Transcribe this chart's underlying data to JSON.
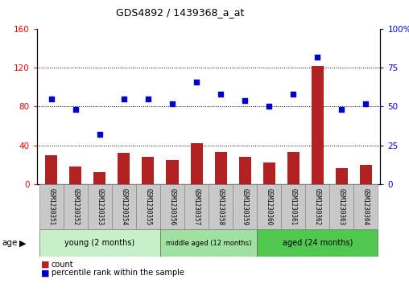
{
  "title": "GDS4892 / 1439368_a_at",
  "samples": [
    "GSM1230351",
    "GSM1230352",
    "GSM1230353",
    "GSM1230354",
    "GSM1230355",
    "GSM1230356",
    "GSM1230357",
    "GSM1230358",
    "GSM1230359",
    "GSM1230360",
    "GSM1230361",
    "GSM1230362",
    "GSM1230363",
    "GSM1230364"
  ],
  "counts": [
    30,
    18,
    12,
    32,
    28,
    25,
    42,
    33,
    28,
    22,
    33,
    122,
    16,
    20
  ],
  "percentiles": [
    55,
    48,
    32,
    55,
    55,
    52,
    66,
    58,
    54,
    50,
    58,
    82,
    48,
    52
  ],
  "groups": [
    {
      "label": "young (2 months)",
      "start": 0,
      "end": 5,
      "color": "#c8f0c8"
    },
    {
      "label": "middle aged (12 months)",
      "start": 5,
      "end": 9,
      "color": "#a0e0a0"
    },
    {
      "label": "aged (24 months)",
      "start": 9,
      "end": 14,
      "color": "#50c850"
    }
  ],
  "bar_color": "#B22222",
  "dot_color": "#0000CC",
  "ylim_left": [
    0,
    160
  ],
  "ylim_right": [
    0,
    100
  ],
  "yticks_left": [
    0,
    40,
    80,
    120,
    160
  ],
  "yticks_right": [
    0,
    25,
    50,
    75,
    100
  ],
  "grid_lines": [
    40,
    80,
    120
  ],
  "background_color": "#ffffff",
  "label_bg_color": "#C8C8C8"
}
